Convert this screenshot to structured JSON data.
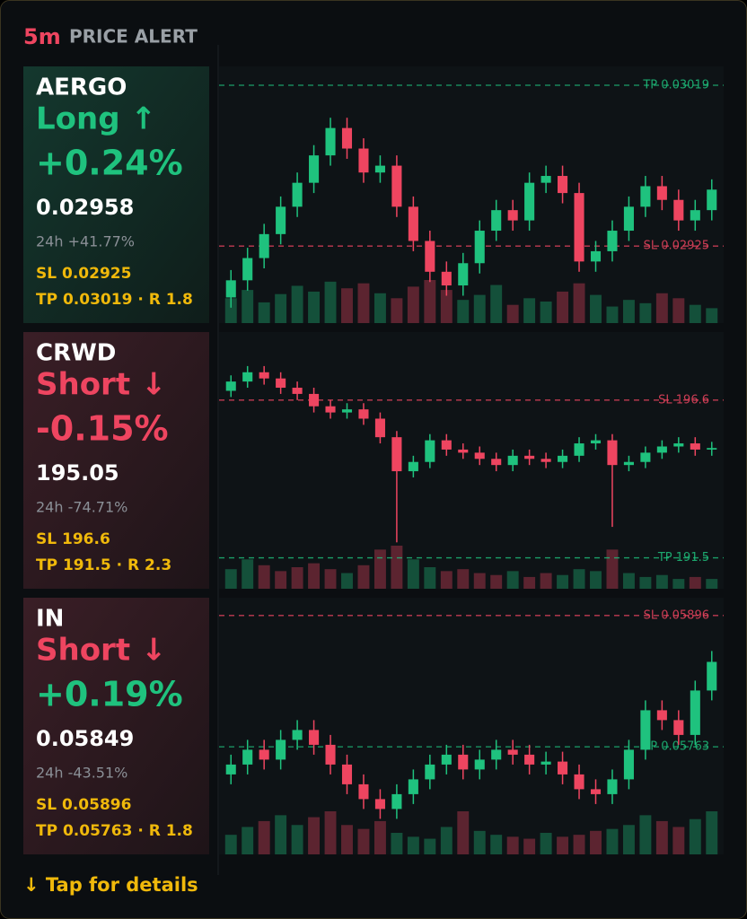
{
  "header": {
    "interval": "5m",
    "title": "PRICE ALERT"
  },
  "cards": [
    {
      "symbol": "AERGO",
      "side": "Long ↑",
      "side_color": "#1fc27e",
      "change": "+0.24%",
      "change_color": "#1fc27e",
      "price": "0.02958",
      "change_24h": "24h +41.77%",
      "sl": "SL 0.02925",
      "tp": "TP 0.03019 · R 1.8",
      "theme": "long"
    },
    {
      "symbol": "CRWD",
      "side": "Short ↓",
      "side_color": "#ee4560",
      "change": "-0.15%",
      "change_color": "#ee4560",
      "price": "195.05",
      "change_24h": "24h -74.71%",
      "sl": "SL 196.6",
      "tp": "TP 191.5 · R 2.3",
      "theme": "short"
    },
    {
      "symbol": "IN",
      "side": "Short ↓",
      "side_color": "#ee4560",
      "change": "+0.19%",
      "change_color": "#1fc27e",
      "price": "0.05849",
      "change_24h": "24h -43.51%",
      "sl": "SL 0.05896",
      "tp": "TP 0.05763 · R 1.8",
      "theme": "short"
    }
  ],
  "chart_data": [
    {
      "type": "candlestick",
      "ylim": [
        0.0288,
        0.0303
      ],
      "up_color": "#1fc27e",
      "down_color": "#ee4560",
      "open": [
        0.02895,
        0.02905,
        0.02918,
        0.02932,
        0.02948,
        0.02962,
        0.02978,
        0.02994,
        0.02982,
        0.02968,
        0.02972,
        0.02948,
        0.02928,
        0.0291,
        0.02902,
        0.02915,
        0.02934,
        0.02946,
        0.0294,
        0.02962,
        0.02966,
        0.02956,
        0.02916,
        0.02922,
        0.02934,
        0.02948,
        0.0296,
        0.02952,
        0.0294,
        0.02946
      ],
      "high": [
        0.02911,
        0.02924,
        0.02938,
        0.02954,
        0.02968,
        0.02984,
        0.03,
        0.03,
        0.02988,
        0.02978,
        0.02978,
        0.02954,
        0.02934,
        0.02916,
        0.02921,
        0.0294,
        0.02952,
        0.02952,
        0.02968,
        0.02972,
        0.02972,
        0.02962,
        0.02928,
        0.0294,
        0.02954,
        0.02966,
        0.02966,
        0.02958,
        0.02952,
        0.02964
      ],
      "low": [
        0.02889,
        0.02899,
        0.02912,
        0.02926,
        0.02942,
        0.02956,
        0.02972,
        0.02976,
        0.02962,
        0.02962,
        0.02942,
        0.02922,
        0.02904,
        0.02896,
        0.02896,
        0.02909,
        0.02928,
        0.02934,
        0.02934,
        0.02956,
        0.0295,
        0.0291,
        0.0291,
        0.02916,
        0.02928,
        0.02942,
        0.02946,
        0.02934,
        0.02934,
        0.0294
      ],
      "close": [
        0.02905,
        0.02918,
        0.02932,
        0.02948,
        0.02962,
        0.02978,
        0.02994,
        0.02982,
        0.02968,
        0.02972,
        0.02948,
        0.02928,
        0.0291,
        0.02902,
        0.02915,
        0.02934,
        0.02946,
        0.0294,
        0.02962,
        0.02966,
        0.02956,
        0.02916,
        0.02922,
        0.02934,
        0.02948,
        0.0296,
        0.02952,
        0.0294,
        0.02946,
        0.02958
      ],
      "volume": [
        30,
        40,
        25,
        35,
        45,
        38,
        50,
        42,
        48,
        36,
        30,
        44,
        52,
        40,
        28,
        34,
        46,
        22,
        30,
        26,
        38,
        48,
        34,
        20,
        28,
        24,
        36,
        30,
        22,
        18
      ],
      "levels": [
        {
          "value": 0.03019,
          "label": "TP 0.03019",
          "color": "#1fc27e"
        },
        {
          "value": 0.02925,
          "label": "SL 0.02925",
          "color": "#ee4560"
        }
      ]
    },
    {
      "type": "candlestick",
      "ylim": [
        190.5,
        198.8
      ],
      "up_color": "#1fc27e",
      "down_color": "#ee4560",
      "open": [
        196.9,
        197.2,
        197.5,
        197.3,
        197,
        196.8,
        196.4,
        196.2,
        196.3,
        196,
        195.4,
        194.3,
        194.6,
        195.3,
        195,
        194.9,
        194.7,
        194.5,
        194.8,
        194.7,
        194.6,
        194.8,
        195.2,
        195.3,
        194.5,
        194.6,
        194.9,
        195.1,
        195.2,
        195
      ],
      "high": [
        197.4,
        197.7,
        197.7,
        197.5,
        197.2,
        197,
        196.6,
        196.5,
        196.5,
        196.2,
        195.6,
        194.8,
        195.5,
        195.5,
        195.2,
        195.1,
        194.9,
        195,
        195,
        194.9,
        195,
        195.4,
        195.5,
        195.5,
        194.8,
        195.1,
        195.3,
        195.4,
        195.4,
        195.25
      ],
      "low": [
        196.7,
        197,
        197.1,
        196.8,
        196.6,
        196.2,
        196,
        196,
        195.8,
        195.2,
        192,
        194.1,
        194.4,
        194.8,
        194.7,
        194.5,
        194.3,
        194.3,
        194.5,
        194.4,
        194.4,
        194.6,
        195,
        192.5,
        194.3,
        194.4,
        194.7,
        194.9,
        194.8,
        194.8
      ],
      "close": [
        197.2,
        197.5,
        197.3,
        197,
        196.8,
        196.4,
        196.2,
        196.3,
        196,
        195.4,
        194.3,
        194.6,
        195.3,
        195,
        194.9,
        194.7,
        194.5,
        194.8,
        194.7,
        194.6,
        194.8,
        195.2,
        195.3,
        194.5,
        194.6,
        194.9,
        195.1,
        195.2,
        195,
        195.05
      ],
      "volume": [
        20,
        30,
        24,
        18,
        22,
        26,
        20,
        16,
        24,
        40,
        44,
        30,
        22,
        18,
        20,
        16,
        14,
        18,
        12,
        16,
        14,
        20,
        18,
        40,
        16,
        12,
        14,
        10,
        12,
        10
      ],
      "levels": [
        {
          "value": 196.6,
          "label": "SL 196.6",
          "color": "#ee4560"
        },
        {
          "value": 191.5,
          "label": "TP 191.5",
          "color": "#1fc27e"
        }
      ]
    },
    {
      "type": "candlestick",
      "ylim": [
        0.05654,
        0.05914
      ],
      "up_color": "#1fc27e",
      "down_color": "#ee4560",
      "open": [
        0.05735,
        0.05745,
        0.0576,
        0.0575,
        0.0577,
        0.0578,
        0.05765,
        0.05745,
        0.05725,
        0.0571,
        0.057,
        0.05715,
        0.0573,
        0.05745,
        0.05755,
        0.0574,
        0.0575,
        0.0576,
        0.05755,
        0.05745,
        0.05748,
        0.05735,
        0.0572,
        0.05715,
        0.0573,
        0.0576,
        0.058,
        0.0579,
        0.05775,
        0.0582
      ],
      "high": [
        0.05755,
        0.0577,
        0.0577,
        0.0578,
        0.0579,
        0.0579,
        0.05775,
        0.05755,
        0.05735,
        0.0572,
        0.05725,
        0.0574,
        0.05755,
        0.05765,
        0.05765,
        0.0576,
        0.0577,
        0.0577,
        0.05765,
        0.05758,
        0.05758,
        0.05745,
        0.0573,
        0.0574,
        0.0577,
        0.0581,
        0.0581,
        0.058,
        0.0583,
        0.0586
      ],
      "low": [
        0.05725,
        0.05735,
        0.0574,
        0.0574,
        0.0576,
        0.05755,
        0.05735,
        0.05715,
        0.057,
        0.0569,
        0.0569,
        0.05705,
        0.0572,
        0.05735,
        0.0573,
        0.0573,
        0.0574,
        0.05745,
        0.05735,
        0.05735,
        0.05725,
        0.0571,
        0.05705,
        0.05705,
        0.0572,
        0.0575,
        0.0578,
        0.05765,
        0.05765,
        0.0581
      ],
      "close": [
        0.05745,
        0.0576,
        0.0575,
        0.0577,
        0.0578,
        0.05765,
        0.05745,
        0.05725,
        0.0571,
        0.057,
        0.05715,
        0.0573,
        0.05745,
        0.05755,
        0.0574,
        0.0575,
        0.0576,
        0.05755,
        0.05745,
        0.05748,
        0.05735,
        0.0572,
        0.05715,
        0.0573,
        0.0576,
        0.058,
        0.0579,
        0.05775,
        0.0582,
        0.05849
      ],
      "volume": [
        20,
        28,
        34,
        40,
        30,
        38,
        44,
        30,
        26,
        34,
        22,
        18,
        16,
        28,
        44,
        24,
        20,
        18,
        16,
        22,
        18,
        20,
        24,
        26,
        30,
        40,
        34,
        28,
        36,
        44
      ],
      "levels": [
        {
          "value": 0.05896,
          "label": "SL 0.05896",
          "color": "#ee4560"
        },
        {
          "value": 0.05763,
          "label": "TP 0.05763",
          "color": "#1fc27e"
        }
      ]
    }
  ],
  "footer": "↓  Tap for details"
}
